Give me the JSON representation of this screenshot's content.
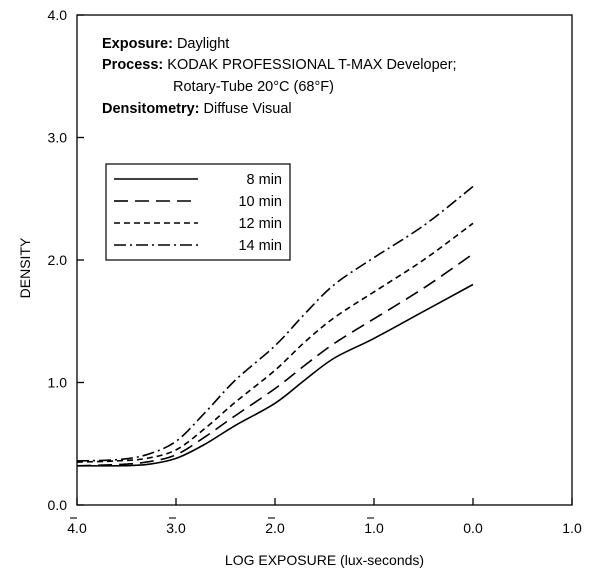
{
  "chart_data": {
    "type": "line",
    "title": "",
    "xlabel": "LOG EXPOSURE (lux-seconds)",
    "ylabel": "DENSITY",
    "xlim": [
      -4.0,
      1.0
    ],
    "ylim": [
      0.0,
      4.0
    ],
    "grid": false,
    "x_ticks": [
      {
        "value": -4.0,
        "label": "4.0",
        "bar": true
      },
      {
        "value": -3.0,
        "label": "3.0",
        "bar": true
      },
      {
        "value": -2.0,
        "label": "2.0",
        "bar": true
      },
      {
        "value": -1.0,
        "label": "1.0",
        "bar": true
      },
      {
        "value": 0.0,
        "label": "0.0",
        "bar": false
      },
      {
        "value": 1.0,
        "label": "1.0",
        "bar": false
      }
    ],
    "y_ticks": [
      {
        "value": 0.0,
        "label": "0.0"
      },
      {
        "value": 1.0,
        "label": "1.0"
      },
      {
        "value": 2.0,
        "label": "2.0"
      },
      {
        "value": 3.0,
        "label": "3.0"
      },
      {
        "value": 4.0,
        "label": "4.0"
      }
    ],
    "info_block": [
      {
        "key": "Exposure:",
        "value": "Daylight"
      },
      {
        "key": "Process:",
        "value": "KODAK PROFESSIONAL T-MAX Developer;"
      },
      {
        "key": "",
        "value": "Rotary-Tube 20°C (68°F)"
      },
      {
        "key": "Densitometry:",
        "value": "Diffuse Visual"
      }
    ],
    "legend_position": "upper-left",
    "series": [
      {
        "name": "8 min",
        "dash": "solid",
        "x": [
          -4.0,
          -3.6,
          -3.3,
          -3.0,
          -2.7,
          -2.4,
          -2.0,
          -1.7,
          -1.4,
          -1.0,
          -0.5,
          0.0
        ],
        "y": [
          0.32,
          0.32,
          0.33,
          0.38,
          0.5,
          0.65,
          0.83,
          1.02,
          1.2,
          1.36,
          1.58,
          1.8
        ]
      },
      {
        "name": "10 min",
        "dash": "dashed",
        "x": [
          -4.0,
          -3.6,
          -3.3,
          -3.0,
          -2.7,
          -2.4,
          -2.0,
          -1.7,
          -1.4,
          -1.0,
          -0.5,
          0.0
        ],
        "y": [
          0.32,
          0.33,
          0.35,
          0.41,
          0.56,
          0.73,
          0.95,
          1.14,
          1.32,
          1.52,
          1.77,
          2.05
        ]
      },
      {
        "name": "12 min",
        "dash": "short-dashed",
        "x": [
          -4.0,
          -3.6,
          -3.3,
          -3.0,
          -2.7,
          -2.4,
          -2.0,
          -1.7,
          -1.4,
          -1.0,
          -0.5,
          0.0
        ],
        "y": [
          0.35,
          0.36,
          0.38,
          0.45,
          0.63,
          0.84,
          1.1,
          1.33,
          1.53,
          1.74,
          2.0,
          2.3
        ]
      },
      {
        "name": "14 min",
        "dash": "dash-dot",
        "x": [
          -4.0,
          -3.6,
          -3.3,
          -3.0,
          -2.7,
          -2.4,
          -2.0,
          -1.7,
          -1.4,
          -1.0,
          -0.5,
          0.0
        ],
        "y": [
          0.36,
          0.37,
          0.41,
          0.52,
          0.76,
          1.02,
          1.3,
          1.56,
          1.8,
          2.02,
          2.28,
          2.6
        ]
      }
    ]
  }
}
